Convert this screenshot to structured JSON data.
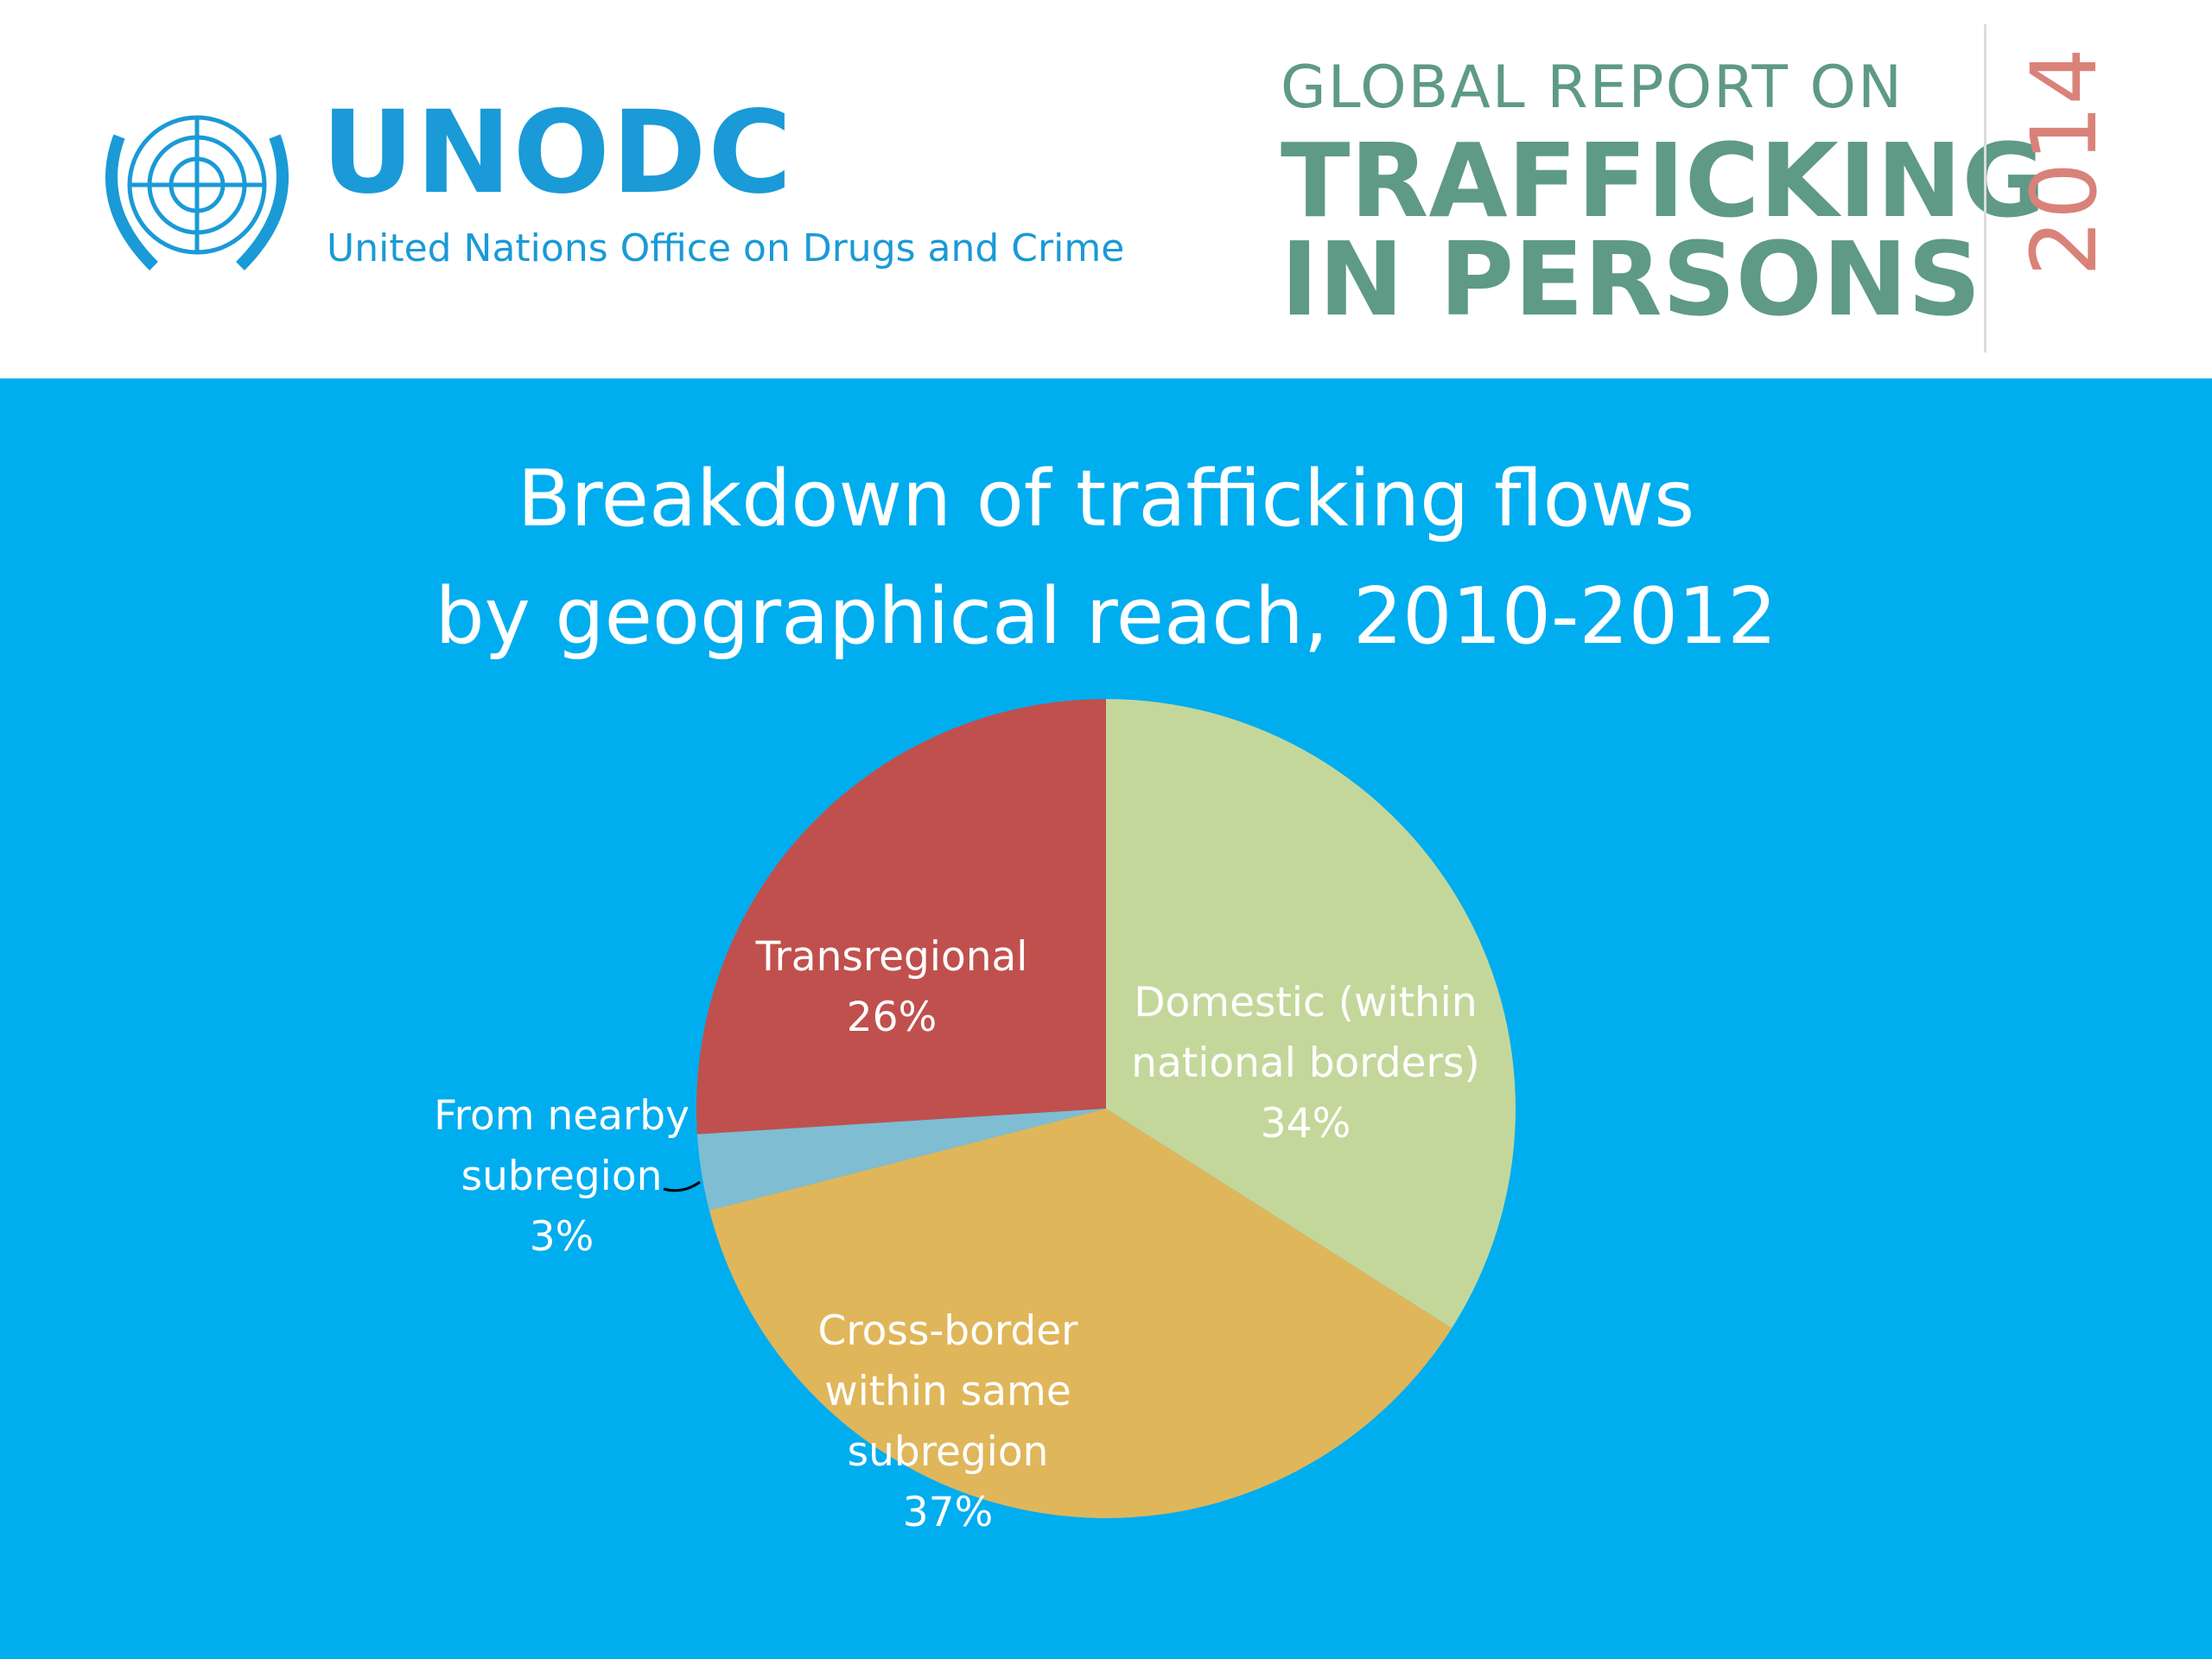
{
  "header": {
    "org": "UNODC",
    "org_full": "United Nations Office on Drugs and Crime",
    "report_line1": "GLOBAL REPORT ON",
    "report_line2": "TRAFFICKING",
    "report_line3": "IN PERSONS",
    "report_year": "2014"
  },
  "chart_data": {
    "type": "pie",
    "title": [
      "Breakdown of trafficking flows",
      "by geographical reach, 2010-2012"
    ],
    "categories": [
      "Domestic (within national borders)",
      "Cross-border within same subregion",
      "From nearby subregion",
      "Transregional"
    ],
    "values": [
      34,
      37,
      3,
      26
    ],
    "value_labels": [
      "34%",
      "37%",
      "3%",
      "26%"
    ],
    "colors": [
      "#c4d79b",
      "#e0b65a",
      "#7fbdd3",
      "#c0504d"
    ]
  }
}
